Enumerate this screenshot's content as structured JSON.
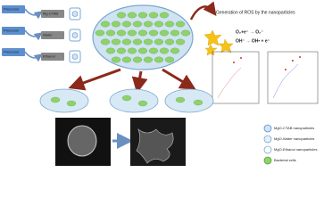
{
  "precursors": [
    {
      "label": "Precursor",
      "solvent": "Mg CTAB"
    },
    {
      "label": "Precursor",
      "solvent": "Water"
    },
    {
      "label": "Precursor",
      "solvent": "Ethanol"
    }
  ],
  "ros": {
    "title": "Generation of ROS by the nanoparticles",
    "reactions": [
      "O₂+e⁻ → O₂⁻",
      "OH⁻ → OH• + e⁻"
    ]
  },
  "legend": [
    "MgO-CTAB nanoparticles",
    "MgO-Water nanoparticles",
    "MgO-Ethanol nanoparticles",
    "Bacterial cells"
  ]
}
